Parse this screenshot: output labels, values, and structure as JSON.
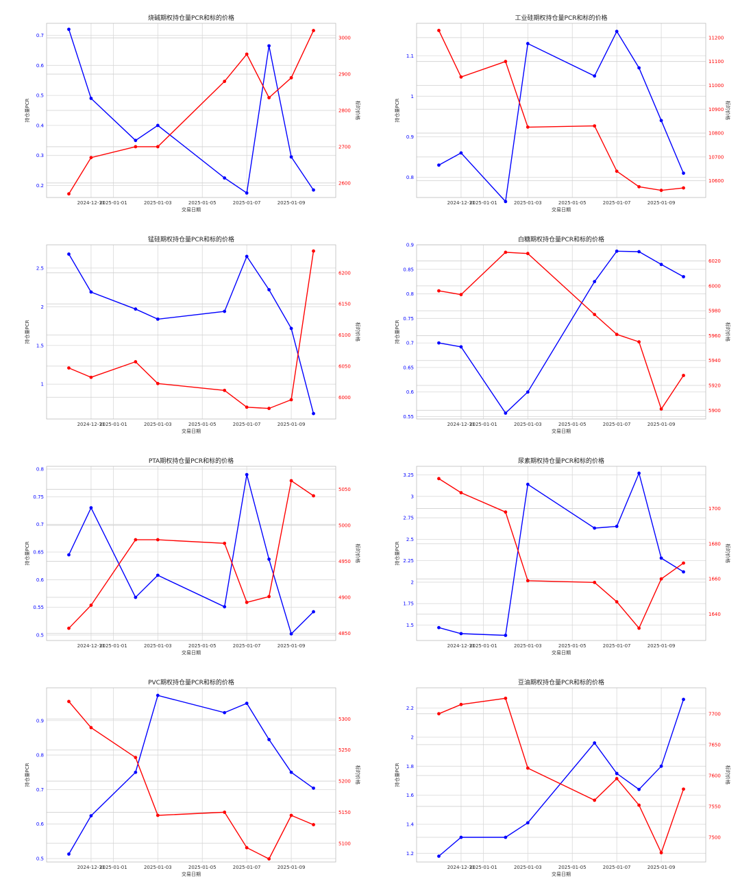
{
  "x_tick_labels": [
    "2024-12-31",
    "2025-01-01",
    "2025-01-03",
    "2025-01-05",
    "2025-01-07",
    "2025-01-09"
  ],
  "x_dates": [
    "2024-12-30",
    "2024-12-31",
    "2025-01-02",
    "2025-01-03",
    "2025-01-06",
    "2025-01-07",
    "2025-01-08",
    "2025-01-09",
    "2025-01-10"
  ],
  "xlabel": "交易日期",
  "ylabel_left": "持仓量PCR",
  "ylabel_right": "标的价格",
  "colors": {
    "pcr": "#0000ff",
    "price": "#ff0000"
  },
  "chart_data": [
    {
      "type": "line",
      "title": "烧碱期权持仓量PCR和标的价格",
      "left_ticks": [
        0.2,
        0.3,
        0.4,
        0.5,
        0.6,
        0.7
      ],
      "left_ylim": [
        0.16,
        0.74
      ],
      "right_ticks": [
        2600,
        2700,
        2800,
        2900,
        3000
      ],
      "right_ylim": [
        2560,
        3040
      ],
      "series": [
        {
          "axis": "left",
          "values": [
            0.72,
            0.49,
            0.35,
            0.4,
            0.225,
            0.175,
            0.665,
            0.295,
            0.185
          ]
        },
        {
          "axis": "right",
          "values": [
            2570,
            2670,
            2700,
            2700,
            2880,
            2955,
            2835,
            2890,
            3020
          ]
        }
      ]
    },
    {
      "type": "line",
      "title": "工业硅期权持仓量PCR和标的价格",
      "left_ticks": [
        0.8,
        0.9,
        1.0,
        1.1
      ],
      "left_ylim": [
        0.75,
        1.18
      ],
      "right_ticks": [
        10600,
        10700,
        10800,
        10900,
        11000,
        11100,
        11200
      ],
      "right_ylim": [
        10530,
        11260
      ],
      "series": [
        {
          "axis": "left",
          "values": [
            0.83,
            0.86,
            0.74,
            1.13,
            1.05,
            1.16,
            1.07,
            0.94,
            0.81
          ]
        },
        {
          "axis": "right",
          "values": [
            11230,
            11035,
            11100,
            10825,
            10830,
            10640,
            10575,
            10560,
            10570
          ]
        }
      ]
    },
    {
      "type": "line",
      "title": "锰硅期权持仓量PCR和标的价格",
      "left_ticks": [
        1.0,
        1.5,
        2.0,
        2.5
      ],
      "left_ylim": [
        0.55,
        2.8
      ],
      "right_ticks": [
        6000,
        6050,
        6100,
        6150,
        6200
      ],
      "right_ylim": [
        5965,
        6245
      ],
      "series": [
        {
          "axis": "left",
          "values": [
            2.68,
            2.19,
            1.97,
            1.84,
            1.94,
            2.65,
            2.22,
            1.72,
            0.62
          ]
        },
        {
          "axis": "right",
          "values": [
            6047,
            6032,
            6057,
            6022,
            6011,
            5984,
            5982,
            5996,
            6235
          ]
        }
      ]
    },
    {
      "type": "line",
      "title": "白糖期权持仓量PCR和标的价格",
      "left_ticks": [
        0.55,
        0.6,
        0.65,
        0.7,
        0.75,
        0.8,
        0.85,
        0.9
      ],
      "left_ylim": [
        0.545,
        0.9
      ],
      "right_ticks": [
        5900,
        5920,
        5940,
        5960,
        5980,
        6000,
        6020
      ],
      "right_ylim": [
        5893,
        6033
      ],
      "series": [
        {
          "axis": "left",
          "values": [
            0.7,
            0.692,
            0.557,
            0.6,
            0.825,
            0.887,
            0.886,
            0.86,
            0.835
          ]
        },
        {
          "axis": "right",
          "values": [
            5996,
            5993,
            6027,
            6026,
            5977,
            5961,
            5955,
            5901,
            5928
          ]
        }
      ]
    },
    {
      "type": "line",
      "title": "PTA期权持仓量PCR和标的价格",
      "left_ticks": [
        0.5,
        0.55,
        0.6,
        0.65,
        0.7,
        0.75,
        0.8
      ],
      "left_ylim": [
        0.49,
        0.805
      ],
      "right_ticks": [
        4850,
        4900,
        4950,
        5000,
        5050
      ],
      "right_ylim": [
        4840,
        5082
      ],
      "series": [
        {
          "axis": "left",
          "values": [
            0.645,
            0.73,
            0.568,
            0.608,
            0.551,
            0.79,
            0.637,
            0.502,
            0.542
          ]
        },
        {
          "axis": "right",
          "values": [
            4857,
            4889,
            4980,
            4980,
            4975,
            4893,
            4901,
            5062,
            5041
          ]
        }
      ]
    },
    {
      "type": "line",
      "title": "尿素期权持仓量PCR和标的价格",
      "left_ticks": [
        1.5,
        1.75,
        2.0,
        2.25,
        2.5,
        2.75,
        3.0,
        3.25
      ],
      "left_ylim": [
        1.32,
        3.35
      ],
      "right_ticks": [
        1640,
        1660,
        1680,
        1700
      ],
      "right_ylim": [
        1625,
        1724
      ],
      "series": [
        {
          "axis": "left",
          "values": [
            1.47,
            1.4,
            1.38,
            3.14,
            2.63,
            2.65,
            3.27,
            2.28,
            2.12
          ]
        },
        {
          "axis": "right",
          "values": [
            1717,
            1709,
            1698,
            1659,
            1658,
            1647,
            1632,
            1660,
            1669
          ]
        }
      ]
    },
    {
      "type": "line",
      "title": "PVC期权持仓量PCR和标的价格",
      "left_ticks": [
        0.5,
        0.6,
        0.7,
        0.8,
        0.9
      ],
      "left_ylim": [
        0.49,
        0.995
      ],
      "right_ticks": [
        5100,
        5150,
        5200,
        5250,
        5300
      ],
      "right_ylim": [
        5070,
        5350
      ],
      "series": [
        {
          "axis": "left",
          "values": [
            0.513,
            0.624,
            0.75,
            0.973,
            0.923,
            0.95,
            0.845,
            0.75,
            0.704
          ]
        },
        {
          "axis": "right",
          "values": [
            5328,
            5286,
            5238,
            5145,
            5150,
            5093,
            5075,
            5145,
            5130
          ]
        }
      ]
    },
    {
      "type": "line",
      "title": "豆油期权持仓量PCR和标的价格",
      "left_ticks": [
        1.2,
        1.4,
        1.6,
        1.8,
        2.0,
        2.2
      ],
      "left_ylim": [
        1.14,
        2.34
      ],
      "right_ticks": [
        7500,
        7550,
        7600,
        7650,
        7700
      ],
      "right_ylim": [
        7460,
        7742
      ],
      "series": [
        {
          "axis": "left",
          "values": [
            1.18,
            1.31,
            1.31,
            1.41,
            1.96,
            1.75,
            1.64,
            1.8,
            2.26
          ]
        },
        {
          "axis": "right",
          "values": [
            7700,
            7715,
            7725,
            7612,
            7560,
            7595,
            7552,
            7475,
            7578
          ]
        }
      ]
    }
  ]
}
